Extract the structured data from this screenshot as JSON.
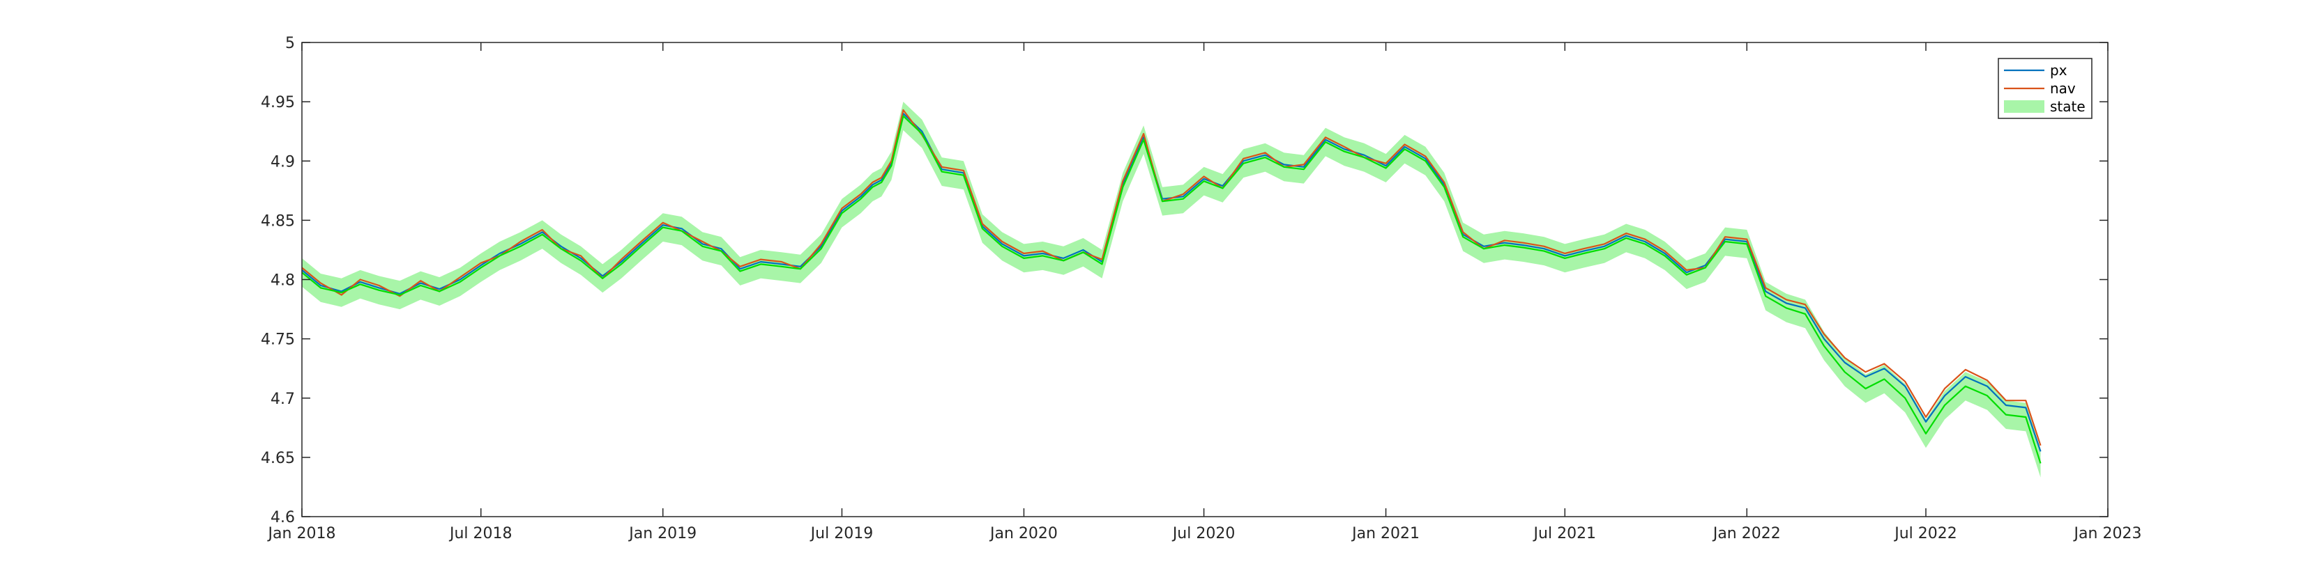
{
  "chart_data": {
    "type": "line",
    "title": "",
    "xlabel": "",
    "ylabel": "",
    "ylim": [
      4.6,
      5.0
    ],
    "xlim": [
      "2018-01-01",
      "2023-01-01"
    ],
    "grid": false,
    "legend_position": "top-right",
    "x_ticks": [
      {
        "date": "2018-01-01",
        "label": "Jan 2018"
      },
      {
        "date": "2018-07-01",
        "label": "Jul 2018"
      },
      {
        "date": "2019-01-01",
        "label": "Jan 2019"
      },
      {
        "date": "2019-07-01",
        "label": "Jul 2019"
      },
      {
        "date": "2020-01-01",
        "label": "Jan 2020"
      },
      {
        "date": "2020-07-01",
        "label": "Jul 2020"
      },
      {
        "date": "2021-01-01",
        "label": "Jan 2021"
      },
      {
        "date": "2021-07-01",
        "label": "Jul 2021"
      },
      {
        "date": "2022-01-01",
        "label": "Jan 2022"
      },
      {
        "date": "2022-07-01",
        "label": "Jul 2022"
      },
      {
        "date": "2023-01-01",
        "label": "Jan 2023"
      }
    ],
    "y_ticks": [
      {
        "value": 4.6,
        "label": "4.6"
      },
      {
        "value": 4.65,
        "label": "4.65"
      },
      {
        "value": 4.7,
        "label": "4.7"
      },
      {
        "value": 4.75,
        "label": "4.75"
      },
      {
        "value": 4.8,
        "label": "4.8"
      },
      {
        "value": 4.85,
        "label": "4.85"
      },
      {
        "value": 4.9,
        "label": "4.9"
      },
      {
        "value": 4.95,
        "label": "4.95"
      },
      {
        "value": 5.0,
        "label": "5"
      }
    ],
    "x": [
      "2018-01-01",
      "2018-01-20",
      "2018-02-10",
      "2018-03-01",
      "2018-03-20",
      "2018-04-10",
      "2018-05-01",
      "2018-05-20",
      "2018-06-10",
      "2018-07-01",
      "2018-07-20",
      "2018-08-10",
      "2018-09-01",
      "2018-09-20",
      "2018-10-10",
      "2018-11-01",
      "2018-11-20",
      "2018-12-10",
      "2019-01-01",
      "2019-01-20",
      "2019-02-10",
      "2019-03-01",
      "2019-03-20",
      "2019-04-10",
      "2019-05-01",
      "2019-05-20",
      "2019-06-10",
      "2019-07-01",
      "2019-07-20",
      "2019-08-01",
      "2019-08-10",
      "2019-08-20",
      "2019-09-01",
      "2019-09-20",
      "2019-10-10",
      "2019-11-01",
      "2019-11-20",
      "2019-12-10",
      "2020-01-01",
      "2020-01-20",
      "2020-02-10",
      "2020-03-01",
      "2020-03-20",
      "2020-04-10",
      "2020-05-01",
      "2020-05-20",
      "2020-06-10",
      "2020-07-01",
      "2020-07-20",
      "2020-08-10",
      "2020-09-01",
      "2020-09-20",
      "2020-10-10",
      "2020-11-01",
      "2020-11-20",
      "2020-12-10",
      "2021-01-01",
      "2021-01-20",
      "2021-02-10",
      "2021-03-01",
      "2021-03-20",
      "2021-04-10",
      "2021-05-01",
      "2021-05-20",
      "2021-06-10",
      "2021-07-01",
      "2021-07-20",
      "2021-08-10",
      "2021-09-01",
      "2021-09-20",
      "2021-10-10",
      "2021-11-01",
      "2021-11-20",
      "2021-12-10",
      "2022-01-01",
      "2022-01-20",
      "2022-02-10",
      "2022-03-01",
      "2022-03-20",
      "2022-04-10",
      "2022-05-01",
      "2022-05-20",
      "2022-06-10",
      "2022-07-01",
      "2022-07-20",
      "2022-08-10",
      "2022-09-01",
      "2022-09-20",
      "2022-10-10",
      "2022-10-25"
    ],
    "series": [
      {
        "name": "px",
        "color": "#0072BD",
        "values": [
          4.808,
          4.795,
          4.79,
          4.798,
          4.793,
          4.788,
          4.797,
          4.792,
          4.8,
          4.812,
          4.822,
          4.83,
          4.84,
          4.828,
          4.818,
          4.803,
          4.815,
          4.83,
          4.846,
          4.843,
          4.83,
          4.826,
          4.809,
          4.815,
          4.813,
          4.811,
          4.828,
          4.858,
          4.87,
          4.88,
          4.884,
          4.898,
          4.94,
          4.925,
          4.893,
          4.89,
          4.845,
          4.83,
          4.82,
          4.822,
          4.818,
          4.825,
          4.815,
          4.88,
          4.92,
          4.868,
          4.87,
          4.885,
          4.879,
          4.9,
          4.905,
          4.897,
          4.895,
          4.918,
          4.91,
          4.905,
          4.896,
          4.912,
          4.902,
          4.88,
          4.838,
          4.828,
          4.831,
          4.829,
          4.826,
          4.82,
          4.824,
          4.828,
          4.837,
          4.832,
          4.822,
          4.806,
          4.812,
          4.834,
          4.832,
          4.79,
          4.78,
          4.776,
          4.75,
          4.73,
          4.718,
          4.725,
          4.71,
          4.68,
          4.702,
          4.718,
          4.71,
          4.694,
          4.692,
          4.655
        ]
      },
      {
        "name": "nav",
        "color": "#D95319",
        "values": [
          4.81,
          4.797,
          4.787,
          4.8,
          4.795,
          4.786,
          4.799,
          4.79,
          4.802,
          4.814,
          4.82,
          4.832,
          4.842,
          4.826,
          4.82,
          4.801,
          4.817,
          4.832,
          4.848,
          4.841,
          4.832,
          4.824,
          4.811,
          4.817,
          4.815,
          4.809,
          4.83,
          4.86,
          4.872,
          4.882,
          4.886,
          4.9,
          4.943,
          4.922,
          4.895,
          4.892,
          4.847,
          4.832,
          4.822,
          4.824,
          4.816,
          4.823,
          4.817,
          4.883,
          4.923,
          4.866,
          4.872,
          4.887,
          4.877,
          4.902,
          4.907,
          4.895,
          4.897,
          4.92,
          4.912,
          4.903,
          4.898,
          4.914,
          4.904,
          4.882,
          4.84,
          4.826,
          4.833,
          4.831,
          4.828,
          4.822,
          4.826,
          4.83,
          4.839,
          4.834,
          4.824,
          4.808,
          4.81,
          4.836,
          4.834,
          4.793,
          4.783,
          4.779,
          4.754,
          4.734,
          4.722,
          4.729,
          4.714,
          4.684,
          4.708,
          4.724,
          4.715,
          4.698,
          4.698,
          4.66
        ]
      },
      {
        "name": "state",
        "color": "#00DD00",
        "band_color": "#A8F5A8",
        "band_halfwidth": 0.012,
        "values": [
          4.806,
          4.793,
          4.789,
          4.796,
          4.791,
          4.787,
          4.795,
          4.79,
          4.798,
          4.81,
          4.82,
          4.828,
          4.838,
          4.826,
          4.816,
          4.801,
          4.813,
          4.828,
          4.844,
          4.841,
          4.828,
          4.824,
          4.807,
          4.813,
          4.811,
          4.809,
          4.826,
          4.856,
          4.868,
          4.878,
          4.882,
          4.896,
          4.938,
          4.923,
          4.891,
          4.888,
          4.843,
          4.828,
          4.818,
          4.82,
          4.816,
          4.823,
          4.813,
          4.878,
          4.918,
          4.866,
          4.868,
          4.883,
          4.877,
          4.898,
          4.903,
          4.895,
          4.893,
          4.916,
          4.908,
          4.903,
          4.894,
          4.91,
          4.9,
          4.878,
          4.836,
          4.826,
          4.829,
          4.827,
          4.824,
          4.818,
          4.822,
          4.826,
          4.835,
          4.83,
          4.82,
          4.804,
          4.81,
          4.832,
          4.83,
          4.786,
          4.776,
          4.771,
          4.744,
          4.722,
          4.708,
          4.716,
          4.7,
          4.67,
          4.694,
          4.71,
          4.702,
          4.686,
          4.684,
          4.645
        ]
      }
    ]
  }
}
